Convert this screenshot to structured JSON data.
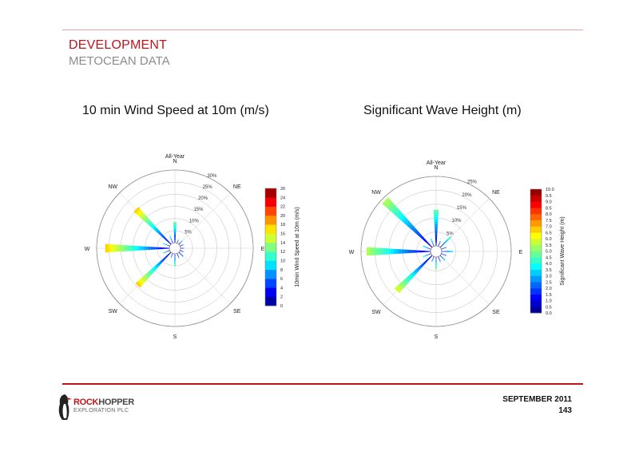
{
  "header": {
    "title": "DEVELOPMENT",
    "subtitle": "METOCEAN DATA"
  },
  "footer": {
    "date": "SEPTEMBER 2011",
    "page": "143",
    "logo_text_1": "ROCK",
    "logo_text_2": "HOPPER",
    "logo_sub": "EXPLORATION PLC"
  },
  "chart_data": [
    {
      "type": "wind-rose",
      "panel_title": "10 min Wind Speed at 10m (m/s)",
      "title": "All-Year",
      "directions": [
        "N",
        "NE",
        "E",
        "SE",
        "S",
        "SW",
        "W",
        "NW"
      ],
      "radial_ticks": [
        "5%",
        "10%",
        "15%",
        "20%",
        "25%",
        "30%"
      ],
      "radial_max": 30,
      "colorbar_label": "10min Wind Speed at 10m (m/s)",
      "colorbar_ticks": [
        "0",
        "2",
        "4",
        "6",
        "8",
        "10",
        "12",
        "14",
        "16",
        "18",
        "20",
        "22",
        "24",
        "26"
      ],
      "colorbar_max": 26,
      "series": [
        {
          "dir": 0,
          "freq": 8.5,
          "vmax": 12
        },
        {
          "dir": 22.5,
          "freq": 1.5,
          "vmax": 6
        },
        {
          "dir": 45,
          "freq": 2.0,
          "vmax": 7
        },
        {
          "dir": 67.5,
          "freq": 1.5,
          "vmax": 6
        },
        {
          "dir": 90,
          "freq": 1.5,
          "vmax": 5
        },
        {
          "dir": 112.5,
          "freq": 1.5,
          "vmax": 5
        },
        {
          "dir": 135,
          "freq": 2.5,
          "vmax": 6
        },
        {
          "dir": 157.5,
          "freq": 2.0,
          "vmax": 6
        },
        {
          "dir": 180,
          "freq": 5.0,
          "vmax": 11
        },
        {
          "dir": 202.5,
          "freq": 2.0,
          "vmax": 8
        },
        {
          "dir": 225,
          "freq": 19.5,
          "vmax": 18
        },
        {
          "dir": 247.5,
          "freq": 3.0,
          "vmax": 10
        },
        {
          "dir": 270,
          "freq": 26.5,
          "vmax": 18
        },
        {
          "dir": 292.5,
          "freq": 3.0,
          "vmax": 10
        },
        {
          "dir": 315,
          "freq": 20.5,
          "vmax": 18
        },
        {
          "dir": 337.5,
          "freq": 3.0,
          "vmax": 9
        }
      ]
    },
    {
      "type": "wave-rose",
      "panel_title": "Significant Wave Height (m)",
      "title": "All-Year",
      "directions": [
        "N",
        "NE",
        "E",
        "SE",
        "S",
        "SW",
        "W",
        "NW"
      ],
      "radial_ticks": [
        "5%",
        "10%",
        "15%",
        "20%",
        "25%"
      ],
      "radial_max": 25,
      "colorbar_label": "Significant Wave Height (m)",
      "colorbar_ticks": [
        "0.0",
        "0.5",
        "1.0",
        "1.5",
        "2.0",
        "2.5",
        "3.0",
        "3.5",
        "4.0",
        "4.5",
        "5.0",
        "5.5",
        "6.0",
        "6.5",
        "7.0",
        "7.5",
        "8.0",
        "8.5",
        "9.0",
        "9.5",
        "10.0"
      ],
      "colorbar_max": 10,
      "series": [
        {
          "dir": 0,
          "freq": 13.0,
          "vmax": 4.5
        },
        {
          "dir": 22.5,
          "freq": 2.0,
          "vmax": 2.5
        },
        {
          "dir": 45,
          "freq": 5.5,
          "vmax": 4.5
        },
        {
          "dir": 67.5,
          "freq": 2.0,
          "vmax": 2.5
        },
        {
          "dir": 90,
          "freq": 4.0,
          "vmax": 3.5
        },
        {
          "dir": 112.5,
          "freq": 2.0,
          "vmax": 2.5
        },
        {
          "dir": 135,
          "freq": 2.5,
          "vmax": 3.0
        },
        {
          "dir": 157.5,
          "freq": 2.0,
          "vmax": 2.5
        },
        {
          "dir": 180,
          "freq": 4.5,
          "vmax": 5.0
        },
        {
          "dir": 202.5,
          "freq": 2.0,
          "vmax": 3.0
        },
        {
          "dir": 225,
          "freq": 18.0,
          "vmax": 6.0
        },
        {
          "dir": 247.5,
          "freq": 3.0,
          "vmax": 3.5
        },
        {
          "dir": 270,
          "freq": 23.0,
          "vmax": 5.5
        },
        {
          "dir": 292.5,
          "freq": 3.0,
          "vmax": 3.5
        },
        {
          "dir": 315,
          "freq": 24.0,
          "vmax": 5.5
        },
        {
          "dir": 337.5,
          "freq": 3.0,
          "vmax": 3.5
        }
      ]
    }
  ]
}
